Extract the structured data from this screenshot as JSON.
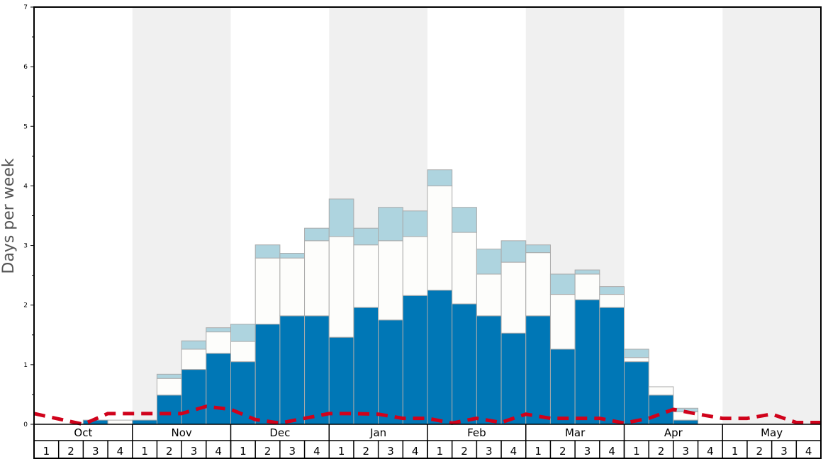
{
  "chart_data": {
    "type": "bar",
    "stacked": true,
    "ylabel": "Days per week",
    "ylim": [
      0,
      7
    ],
    "yticks": [
      "0",
      "1",
      "2",
      "3",
      "4",
      "5",
      "6",
      "7"
    ],
    "months": [
      "Oct",
      "Nov",
      "Dec",
      "Jan",
      "Feb",
      "Mar",
      "Apr",
      "May"
    ],
    "weeks": [
      "1",
      "2",
      "3",
      "4"
    ],
    "shaded_months": [
      "Nov",
      "Jan",
      "Mar",
      "May"
    ],
    "colors": {
      "blue": "#0077b6",
      "white": "#fdfdfb",
      "lightblue": "#aed4df",
      "line": "#d0021b",
      "shade": "#f0f0f0"
    },
    "series": [
      {
        "name": "blue",
        "values": [
          0,
          0,
          0.07,
          0,
          0.07,
          0.49,
          0.92,
          1.19,
          1.05,
          1.68,
          1.82,
          1.82,
          1.46,
          1.96,
          1.75,
          2.16,
          2.25,
          2.02,
          1.82,
          1.53,
          1.82,
          1.26,
          2.09,
          1.96,
          1.05,
          0.49,
          0.07,
          0,
          0,
          0,
          0,
          0
        ]
      },
      {
        "name": "white",
        "values": [
          0,
          0,
          0,
          0.07,
          0,
          0.28,
          0.34,
          0.36,
          0.34,
          1.11,
          0.97,
          1.26,
          1.69,
          1.05,
          1.33,
          0.99,
          1.75,
          1.2,
          0.7,
          1.19,
          1.06,
          0.92,
          0.43,
          0.22,
          0.07,
          0.14,
          0.14,
          0,
          0,
          0,
          0,
          0
        ]
      },
      {
        "name": "lightblue",
        "values": [
          0,
          0,
          0,
          0,
          0,
          0.07,
          0.14,
          0.07,
          0.29,
          0.22,
          0.08,
          0.21,
          0.63,
          0.28,
          0.56,
          0.43,
          0.27,
          0.42,
          0.42,
          0.36,
          0.13,
          0.34,
          0.07,
          0.13,
          0.14,
          0,
          0.06,
          0,
          0,
          0,
          0,
          0
        ]
      }
    ],
    "line": {
      "name": "dashed average",
      "values": [
        0.18,
        0.09,
        0.0,
        0.18,
        0.18,
        0.18,
        0.18,
        0.3,
        0.25,
        0.08,
        0.02,
        0.1,
        0.18,
        0.18,
        0.17,
        0.1,
        0.1,
        0.02,
        0.1,
        0.03,
        0.17,
        0.1,
        0.1,
        0.1,
        0.02,
        0.1,
        0.25,
        0.17,
        0.1,
        0.1,
        0.17,
        0.03,
        0.03
      ]
    }
  }
}
